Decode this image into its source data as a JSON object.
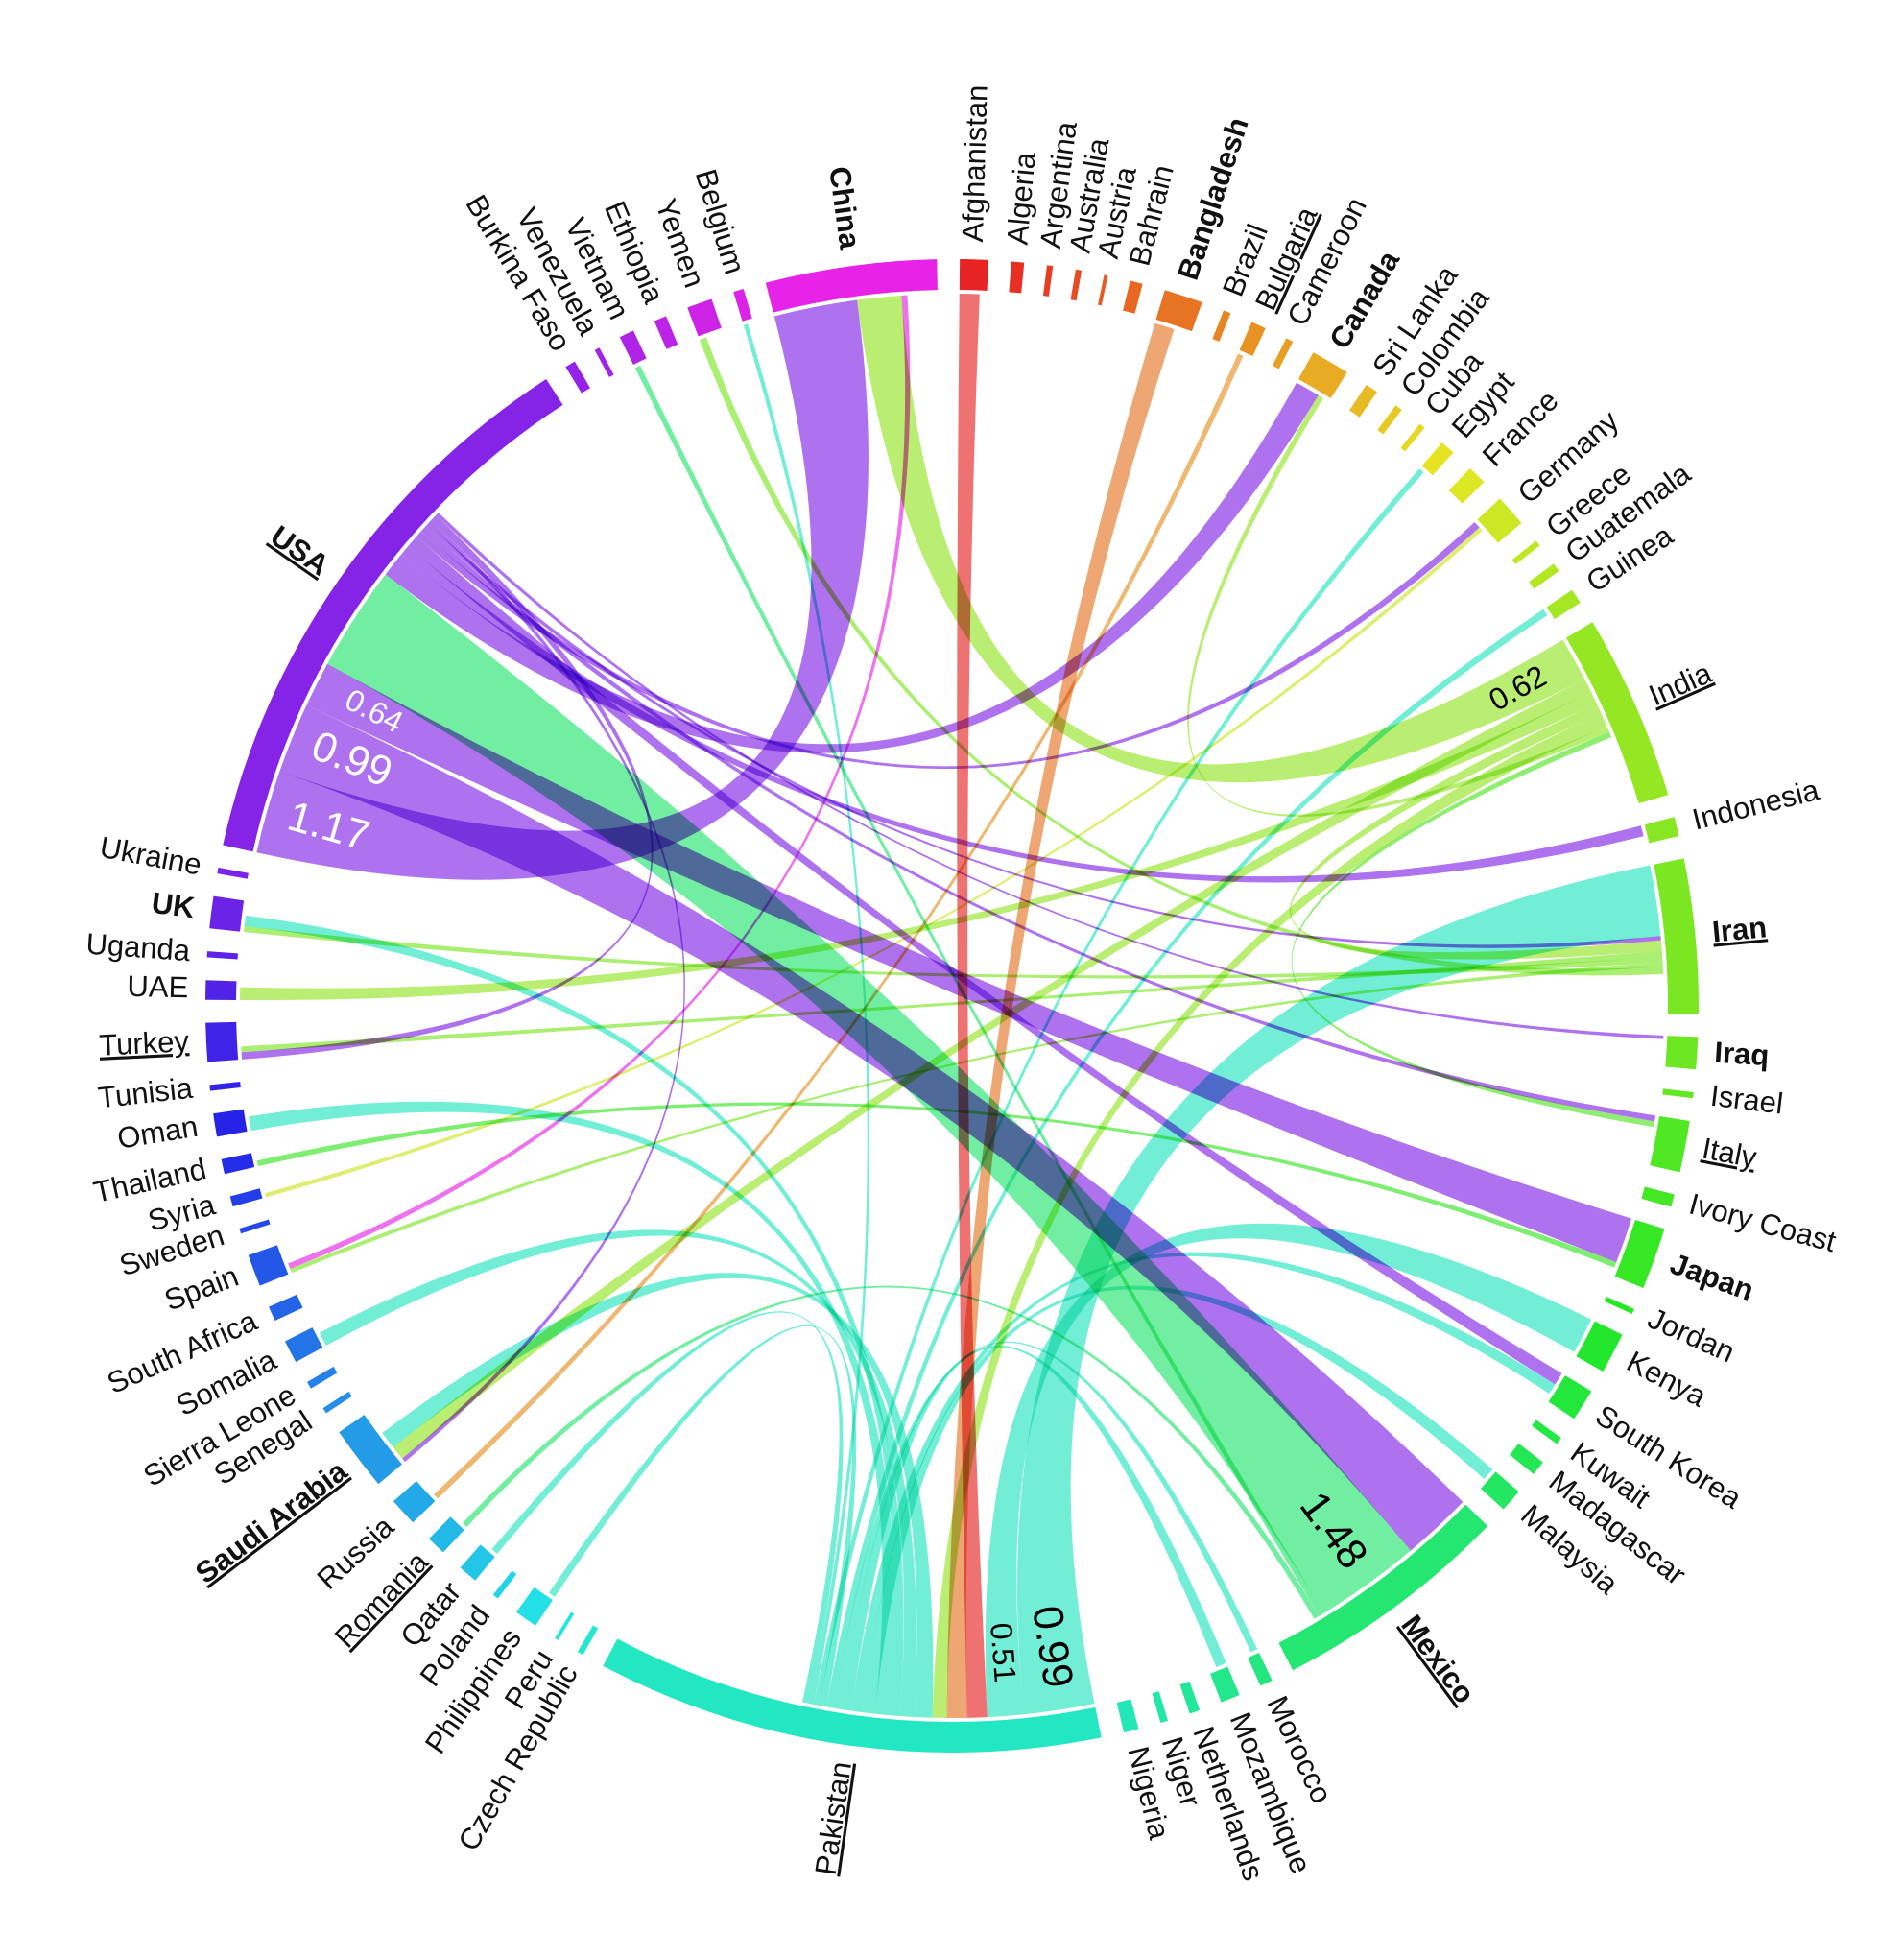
{
  "chart_data": {
    "type": "chord",
    "hue_range": [
      0,
      300
    ],
    "nodes": [
      {
        "name": "Afghanistan",
        "value": 0.38
      },
      {
        "name": "Algeria",
        "value": 0.17
      },
      {
        "name": "Argentina",
        "value": 0.08
      },
      {
        "name": "Australia",
        "value": 0.08
      },
      {
        "name": "Austria",
        "value": 0.05
      },
      {
        "name": "Bahrain",
        "value": 0.17
      },
      {
        "name": "Bangladesh",
        "value": 0.52,
        "bold": true
      },
      {
        "name": "Brazil",
        "value": 0.1
      },
      {
        "name": "Bulgaria",
        "value": 0.2,
        "underline": true
      },
      {
        "name": "Cameroon",
        "value": 0.1
      },
      {
        "name": "Canada",
        "value": 0.52,
        "bold": true
      },
      {
        "name": "Sri Lanka",
        "value": 0.17
      },
      {
        "name": "Colombia",
        "value": 0.1
      },
      {
        "name": "Cuba",
        "value": 0.08
      },
      {
        "name": "Egypt",
        "value": 0.2
      },
      {
        "name": "France",
        "value": 0.26
      },
      {
        "name": "Germany",
        "value": 0.43
      },
      {
        "name": "Greece",
        "value": 0.08
      },
      {
        "name": "Guatemala",
        "value": 0.12
      },
      {
        "name": "Guinea",
        "value": 0.2
      },
      {
        "name": "India",
        "value": 2.5,
        "underline": true
      },
      {
        "name": "Indonesia",
        "value": 0.26
      },
      {
        "name": "Iran",
        "value": 2.07,
        "bold": true,
        "underline": true
      },
      {
        "name": "Iraq",
        "value": 0.43,
        "bold": true
      },
      {
        "name": "Israel",
        "value": 0.08
      },
      {
        "name": "Italy",
        "value": 0.69,
        "underline": true
      },
      {
        "name": "Ivory Coast",
        "value": 0.17
      },
      {
        "name": "Japan",
        "value": 0.83,
        "bold": true
      },
      {
        "name": "Jordan",
        "value": 0.07
      },
      {
        "name": "Kenya",
        "value": 0.55
      },
      {
        "name": "South Korea",
        "value": 0.43
      },
      {
        "name": "Kuwait",
        "value": 0.1
      },
      {
        "name": "Madagascar",
        "value": 0.2
      },
      {
        "name": "Malaysia",
        "value": 0.31
      },
      {
        "name": "Mexico",
        "value": 3.22,
        "bold": true,
        "underline": true
      },
      {
        "name": "Morocco",
        "value": 0.17
      },
      {
        "name": "Mozambique",
        "value": 0.26
      },
      {
        "name": "Netherlands",
        "value": 0.14
      },
      {
        "name": "Niger",
        "value": 0.1
      },
      {
        "name": "Nigeria",
        "value": 0.2
      },
      {
        "name": "Pakistan",
        "value": 6.79,
        "underline": true
      },
      {
        "name": "Czech Republic",
        "value": 0.08
      },
      {
        "name": "Peru",
        "value": 0.05
      },
      {
        "name": "Philippines",
        "value": 0.31
      },
      {
        "name": "Poland",
        "value": 0.08
      },
      {
        "name": "Qatar",
        "value": 0.26
      },
      {
        "name": "Romania",
        "value": 0.26,
        "underline": true
      },
      {
        "name": "Russia",
        "value": 0.38
      },
      {
        "name": "Saudi Arabia",
        "value": 0.86,
        "bold": true,
        "underline": true
      },
      {
        "name": "Senegal",
        "value": 0.08
      },
      {
        "name": "Sierra Leone",
        "value": 0.1
      },
      {
        "name": "Somalia",
        "value": 0.31
      },
      {
        "name": "South Africa",
        "value": 0.2
      },
      {
        "name": "Spain",
        "value": 0.43
      },
      {
        "name": "Sweden",
        "value": 0.07
      },
      {
        "name": "Syria",
        "value": 0.14
      },
      {
        "name": "Thailand",
        "value": 0.2
      },
      {
        "name": "Oman",
        "value": 0.31
      },
      {
        "name": "Tunisia",
        "value": 0.08
      },
      {
        "name": "Turkey",
        "value": 0.52,
        "underline": true
      },
      {
        "name": "UAE",
        "value": 0.26
      },
      {
        "name": "Uganda",
        "value": 0.08
      },
      {
        "name": "UK",
        "value": 0.43,
        "bold": true
      },
      {
        "name": "Ukraine",
        "value": 0.08
      },
      {
        "name": "USA",
        "value": 7.69,
        "bold": true,
        "underline": true
      },
      {
        "name": "Burkina Faso",
        "value": 0.14
      },
      {
        "name": "Venezuela",
        "value": 0.07
      },
      {
        "name": "Vietnam",
        "value": 0.2
      },
      {
        "name": "Ethiopia",
        "value": 0.17
      },
      {
        "name": "Yemen",
        "value": 0.34
      },
      {
        "name": "Belgium",
        "value": 0.14
      },
      {
        "name": "China",
        "value": 2.29,
        "bold": true
      }
    ],
    "flows": [
      {
        "source": "USA",
        "target": "China",
        "value": 1.17,
        "label": "1.17"
      },
      {
        "source": "USA",
        "target": "Mexico",
        "value": 0.99,
        "label": "0.99"
      },
      {
        "source": "USA",
        "target": "Japan",
        "value": 0.64,
        "label": "0.64",
        "small": true
      },
      {
        "source": "Mexico",
        "target": "USA",
        "value": 1.48,
        "label": "1.48"
      },
      {
        "source": "Pakistan",
        "target": "Iran",
        "value": 0.99,
        "label": "0.99"
      },
      {
        "source": "Pakistan",
        "target": "Kenya",
        "value": 0.51,
        "label": "0.51",
        "small": true
      },
      {
        "source": "India",
        "target": "China",
        "value": 0.62,
        "label": "0.62",
        "small": true
      },
      {
        "source": "USA",
        "target": "Canada",
        "value": 0.35
      },
      {
        "source": "USA",
        "target": "Indonesia",
        "value": 0.15
      },
      {
        "source": "USA",
        "target": "South Korea",
        "value": 0.18
      },
      {
        "source": "USA",
        "target": "Germany",
        "value": 0.1
      },
      {
        "source": "USA",
        "target": "Italy",
        "value": 0.08
      },
      {
        "source": "USA",
        "target": "Iran",
        "value": 0.06
      },
      {
        "source": "USA",
        "target": "Saudi Arabia",
        "value": 0.06
      },
      {
        "source": "USA",
        "target": "Turkey",
        "value": 0.1
      },
      {
        "source": "USA",
        "target": "Iraq",
        "value": 0.05
      },
      {
        "source": "Afghanistan",
        "target": "Pakistan",
        "value": 0.28
      },
      {
        "source": "Bangladesh",
        "target": "Pakistan",
        "value": 0.28
      },
      {
        "source": "India",
        "target": "Saudi Arabia",
        "value": 0.2
      },
      {
        "source": "India",
        "target": "UAE",
        "value": 0.18
      },
      {
        "source": "India",
        "target": "Iran",
        "value": 0.15
      },
      {
        "source": "India",
        "target": "Pakistan",
        "value": 0.2
      },
      {
        "source": "India",
        "target": "Canada",
        "value": 0.08
      },
      {
        "source": "Iran",
        "target": "Turkey",
        "value": 0.08
      },
      {
        "source": "Iran",
        "target": "UK",
        "value": 0.08
      },
      {
        "source": "Iran",
        "target": "Spain",
        "value": 0.06
      },
      {
        "source": "Iran",
        "target": "Yemen",
        "value": 0.1
      },
      {
        "source": "Pakistan",
        "target": "Saudi Arabia",
        "value": 0.25
      },
      {
        "source": "Pakistan",
        "target": "Somalia",
        "value": 0.2
      },
      {
        "source": "Pakistan",
        "target": "UK",
        "value": 0.15
      },
      {
        "source": "Pakistan",
        "target": "Oman",
        "value": 0.2
      },
      {
        "source": "Pakistan",
        "target": "Malaysia",
        "value": 0.18
      },
      {
        "source": "Pakistan",
        "target": "South Korea",
        "value": 0.15
      },
      {
        "source": "Pakistan",
        "target": "Mozambique",
        "value": 0.15
      },
      {
        "source": "Pakistan",
        "target": "Morocco",
        "value": 0.1
      },
      {
        "source": "Pakistan",
        "target": "Guinea",
        "value": 0.1
      },
      {
        "source": "Pakistan",
        "target": "Philippines",
        "value": 0.1
      },
      {
        "source": "Pakistan",
        "target": "Egypt",
        "value": 0.08
      },
      {
        "source": "Pakistan",
        "target": "Belgium",
        "value": 0.06
      },
      {
        "source": "Pakistan",
        "target": "Qatar",
        "value": 0.1
      },
      {
        "source": "Mexico",
        "target": "Vietnam",
        "value": 0.08
      },
      {
        "source": "Mexico",
        "target": "Romania",
        "value": 0.08
      },
      {
        "source": "China",
        "target": "Spain",
        "value": 0.08
      },
      {
        "source": "Italy",
        "target": "India",
        "value": 0.08
      },
      {
        "source": "Bulgaria",
        "target": "Russia",
        "value": 0.08
      },
      {
        "source": "Japan",
        "target": "Thailand",
        "value": 0.08
      },
      {
        "source": "Germany",
        "target": "Syria",
        "value": 0.06
      }
    ]
  }
}
